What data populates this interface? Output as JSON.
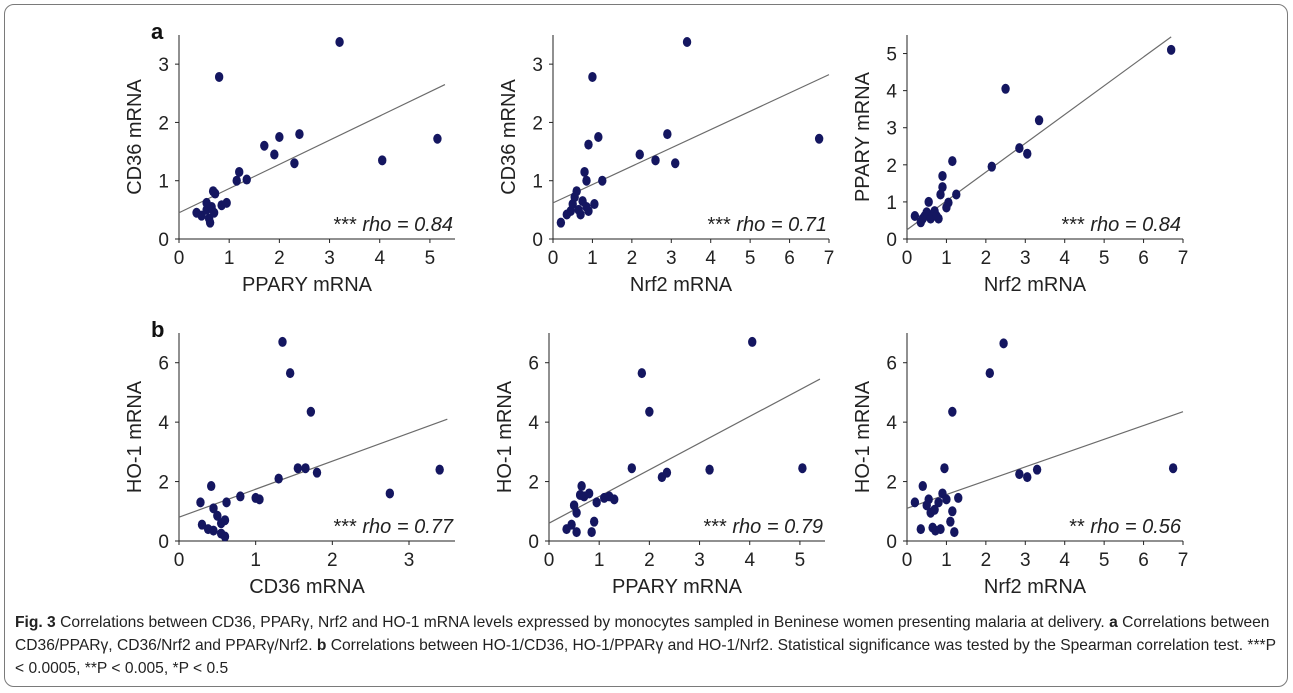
{
  "panel_labels": {
    "a": "a",
    "b": "b"
  },
  "caption": {
    "fig_label": "Fig. 3",
    "text1": "  Correlations between CD36, PPARγ, Nrf2 and HO-1 mRNA levels expressed by monocytes sampled in Beninese women presenting malaria at delivery. ",
    "a_label": "a",
    "text2": " Correlations between CD36/PPARγ, CD36/Nrf2 and PPARγ/Nrf2. ",
    "b_label": "b",
    "text3": " Correlations between HO-1/CD36, HO-1/PPARγ and HO-1/Nrf2. Statistical significance was tested by the Spearman correlation test. ***P < 0.0005, **P < 0.005, *P < 0.5"
  },
  "colors": {
    "point": "#141660",
    "line": "#6b6b6b",
    "axis": "#222222"
  },
  "chart_data": [
    {
      "type": "scatter",
      "xlabel": "PPARY mRNA",
      "ylabel": "CD36 mRNA",
      "xlim": [
        0,
        5.5
      ],
      "ylim": [
        0,
        3.5
      ],
      "xticks": [
        0,
        1,
        2,
        3,
        4,
        5
      ],
      "yticks": [
        0,
        1,
        2,
        3
      ],
      "stars": "***",
      "rho": "rho = 0.84",
      "fit": [
        [
          0,
          0.45
        ],
        [
          5.3,
          2.65
        ]
      ],
      "points": [
        [
          0.35,
          0.45
        ],
        [
          0.45,
          0.4
        ],
        [
          0.55,
          0.5
        ],
        [
          0.6,
          0.35
        ],
        [
          0.62,
          0.28
        ],
        [
          0.55,
          0.62
        ],
        [
          0.65,
          0.55
        ],
        [
          0.7,
          0.45
        ],
        [
          0.68,
          0.82
        ],
        [
          0.72,
          0.78
        ],
        [
          0.85,
          0.58
        ],
        [
          0.95,
          0.62
        ],
        [
          0.8,
          2.78
        ],
        [
          1.15,
          1.0
        ],
        [
          1.2,
          1.15
        ],
        [
          1.35,
          1.02
        ],
        [
          1.7,
          1.6
        ],
        [
          1.9,
          1.45
        ],
        [
          2.0,
          1.75
        ],
        [
          2.3,
          1.3
        ],
        [
          2.4,
          1.8
        ],
        [
          3.2,
          3.38
        ],
        [
          4.05,
          1.35
        ],
        [
          5.15,
          1.72
        ]
      ]
    },
    {
      "type": "scatter",
      "xlabel": "Nrf2 mRNA",
      "ylabel": "CD36 mRNA",
      "xlim": [
        0,
        7
      ],
      "ylim": [
        0,
        3.5
      ],
      "xticks": [
        0,
        1,
        2,
        3,
        4,
        5,
        6,
        7
      ],
      "yticks": [
        0,
        1,
        2,
        3
      ],
      "stars": "***",
      "rho": "rho = 0.71",
      "fit": [
        [
          0,
          0.62
        ],
        [
          7,
          2.82
        ]
      ],
      "points": [
        [
          0.2,
          0.28
        ],
        [
          0.35,
          0.42
        ],
        [
          0.45,
          0.48
        ],
        [
          0.5,
          0.6
        ],
        [
          0.55,
          0.72
        ],
        [
          0.6,
          0.82
        ],
        [
          0.65,
          0.5
        ],
        [
          0.7,
          0.42
        ],
        [
          0.75,
          0.65
        ],
        [
          0.85,
          0.55
        ],
        [
          0.9,
          0.48
        ],
        [
          0.8,
          1.15
        ],
        [
          0.85,
          1.0
        ],
        [
          0.9,
          1.62
        ],
        [
          1.0,
          2.78
        ],
        [
          1.05,
          0.6
        ],
        [
          1.15,
          1.75
        ],
        [
          1.25,
          1.0
        ],
        [
          2.2,
          1.45
        ],
        [
          2.6,
          1.35
        ],
        [
          2.9,
          1.8
        ],
        [
          3.1,
          1.3
        ],
        [
          3.4,
          3.38
        ],
        [
          6.75,
          1.72
        ]
      ]
    },
    {
      "type": "scatter",
      "xlabel": "Nrf2 mRNA",
      "ylabel": "PPARY mRNA",
      "xlim": [
        0,
        7
      ],
      "ylim": [
        0,
        5.5
      ],
      "xticks": [
        0,
        1,
        2,
        3,
        4,
        5,
        6,
        7
      ],
      "yticks": [
        0,
        1,
        2,
        3,
        4,
        5
      ],
      "stars": "***",
      "rho": "rho = 0.84",
      "fit": [
        [
          0,
          0.25
        ],
        [
          6.7,
          5.45
        ]
      ],
      "points": [
        [
          0.2,
          0.62
        ],
        [
          0.35,
          0.45
        ],
        [
          0.4,
          0.55
        ],
        [
          0.45,
          0.62
        ],
        [
          0.5,
          0.72
        ],
        [
          0.55,
          1.0
        ],
        [
          0.6,
          0.55
        ],
        [
          0.65,
          0.62
        ],
        [
          0.7,
          0.75
        ],
        [
          0.75,
          0.62
        ],
        [
          0.8,
          0.55
        ],
        [
          0.85,
          1.2
        ],
        [
          0.9,
          1.4
        ],
        [
          0.9,
          1.7
        ],
        [
          1.0,
          0.85
        ],
        [
          1.05,
          0.98
        ],
        [
          1.15,
          2.1
        ],
        [
          1.25,
          1.2
        ],
        [
          2.15,
          1.95
        ],
        [
          2.5,
          4.05
        ],
        [
          2.85,
          2.45
        ],
        [
          3.05,
          2.3
        ],
        [
          3.35,
          3.2
        ],
        [
          6.7,
          5.1
        ]
      ]
    },
    {
      "type": "scatter",
      "xlabel": "CD36 mRNA",
      "ylabel": "HO-1 mRNA",
      "xlim": [
        0,
        3.6
      ],
      "ylim": [
        0,
        7
      ],
      "xticks": [
        0,
        1,
        2,
        3
      ],
      "yticks": [
        0,
        2,
        4,
        6
      ],
      "stars": "***",
      "rho": "rho = 0.77",
      "fit": [
        [
          0,
          0.8
        ],
        [
          3.5,
          4.1
        ]
      ],
      "points": [
        [
          0.28,
          1.3
        ],
        [
          0.3,
          0.55
        ],
        [
          0.38,
          0.4
        ],
        [
          0.42,
          1.85
        ],
        [
          0.45,
          0.35
        ],
        [
          0.45,
          1.1
        ],
        [
          0.5,
          0.85
        ],
        [
          0.55,
          0.25
        ],
        [
          0.55,
          0.6
        ],
        [
          0.6,
          0.15
        ],
        [
          0.6,
          0.7
        ],
        [
          0.62,
          1.3
        ],
        [
          0.8,
          1.5
        ],
        [
          1.0,
          1.45
        ],
        [
          1.05,
          1.4
        ],
        [
          1.3,
          2.1
        ],
        [
          1.35,
          6.7
        ],
        [
          1.45,
          5.65
        ],
        [
          1.55,
          2.45
        ],
        [
          1.65,
          2.45
        ],
        [
          1.72,
          4.35
        ],
        [
          1.8,
          2.3
        ],
        [
          2.75,
          1.6
        ],
        [
          3.4,
          2.4
        ]
      ]
    },
    {
      "type": "scatter",
      "xlabel": "PPARY mRNA",
      "ylabel": "HO-1 mRNA",
      "xlim": [
        0,
        5.5
      ],
      "ylim": [
        0,
        7
      ],
      "xticks": [
        0,
        1,
        2,
        3,
        4,
        5
      ],
      "yticks": [
        0,
        2,
        4,
        6
      ],
      "stars": "***",
      "rho": "rho = 0.79",
      "fit": [
        [
          0,
          0.6
        ],
        [
          5.4,
          5.45
        ]
      ],
      "points": [
        [
          0.35,
          0.4
        ],
        [
          0.45,
          0.55
        ],
        [
          0.5,
          1.2
        ],
        [
          0.55,
          0.95
        ],
        [
          0.55,
          0.3
        ],
        [
          0.62,
          1.55
        ],
        [
          0.65,
          1.85
        ],
        [
          0.7,
          1.5
        ],
        [
          0.8,
          1.6
        ],
        [
          0.85,
          0.3
        ],
        [
          0.9,
          0.65
        ],
        [
          0.95,
          1.3
        ],
        [
          1.1,
          1.45
        ],
        [
          1.2,
          1.5
        ],
        [
          1.3,
          1.4
        ],
        [
          1.65,
          2.45
        ],
        [
          1.85,
          5.65
        ],
        [
          2.0,
          4.35
        ],
        [
          2.25,
          2.15
        ],
        [
          2.35,
          2.3
        ],
        [
          3.2,
          2.4
        ],
        [
          4.05,
          6.7
        ],
        [
          5.05,
          2.45
        ]
      ]
    },
    {
      "type": "scatter",
      "xlabel": "Nrf2 mRNA",
      "ylabel": "HO-1 mRNA",
      "xlim": [
        0,
        7
      ],
      "ylim": [
        0,
        7
      ],
      "xticks": [
        0,
        1,
        2,
        3,
        4,
        5,
        6,
        7
      ],
      "yticks": [
        0,
        2,
        4,
        6
      ],
      "stars": "**",
      "rho": "rho = 0.56",
      "fit": [
        [
          0,
          1.1
        ],
        [
          7,
          4.35
        ]
      ],
      "points": [
        [
          0.2,
          1.3
        ],
        [
          0.35,
          0.4
        ],
        [
          0.4,
          1.85
        ],
        [
          0.5,
          1.2
        ],
        [
          0.55,
          1.4
        ],
        [
          0.6,
          0.95
        ],
        [
          0.65,
          0.45
        ],
        [
          0.7,
          1.05
        ],
        [
          0.72,
          0.35
        ],
        [
          0.8,
          1.3
        ],
        [
          0.85,
          0.4
        ],
        [
          0.9,
          1.6
        ],
        [
          0.95,
          2.45
        ],
        [
          1.0,
          1.4
        ],
        [
          1.1,
          0.65
        ],
        [
          1.15,
          1.0
        ],
        [
          1.15,
          4.35
        ],
        [
          1.2,
          0.3
        ],
        [
          1.3,
          1.45
        ],
        [
          2.1,
          5.65
        ],
        [
          2.45,
          6.65
        ],
        [
          2.85,
          2.25
        ],
        [
          3.05,
          2.15
        ],
        [
          3.3,
          2.4
        ],
        [
          6.75,
          2.45
        ]
      ]
    }
  ]
}
